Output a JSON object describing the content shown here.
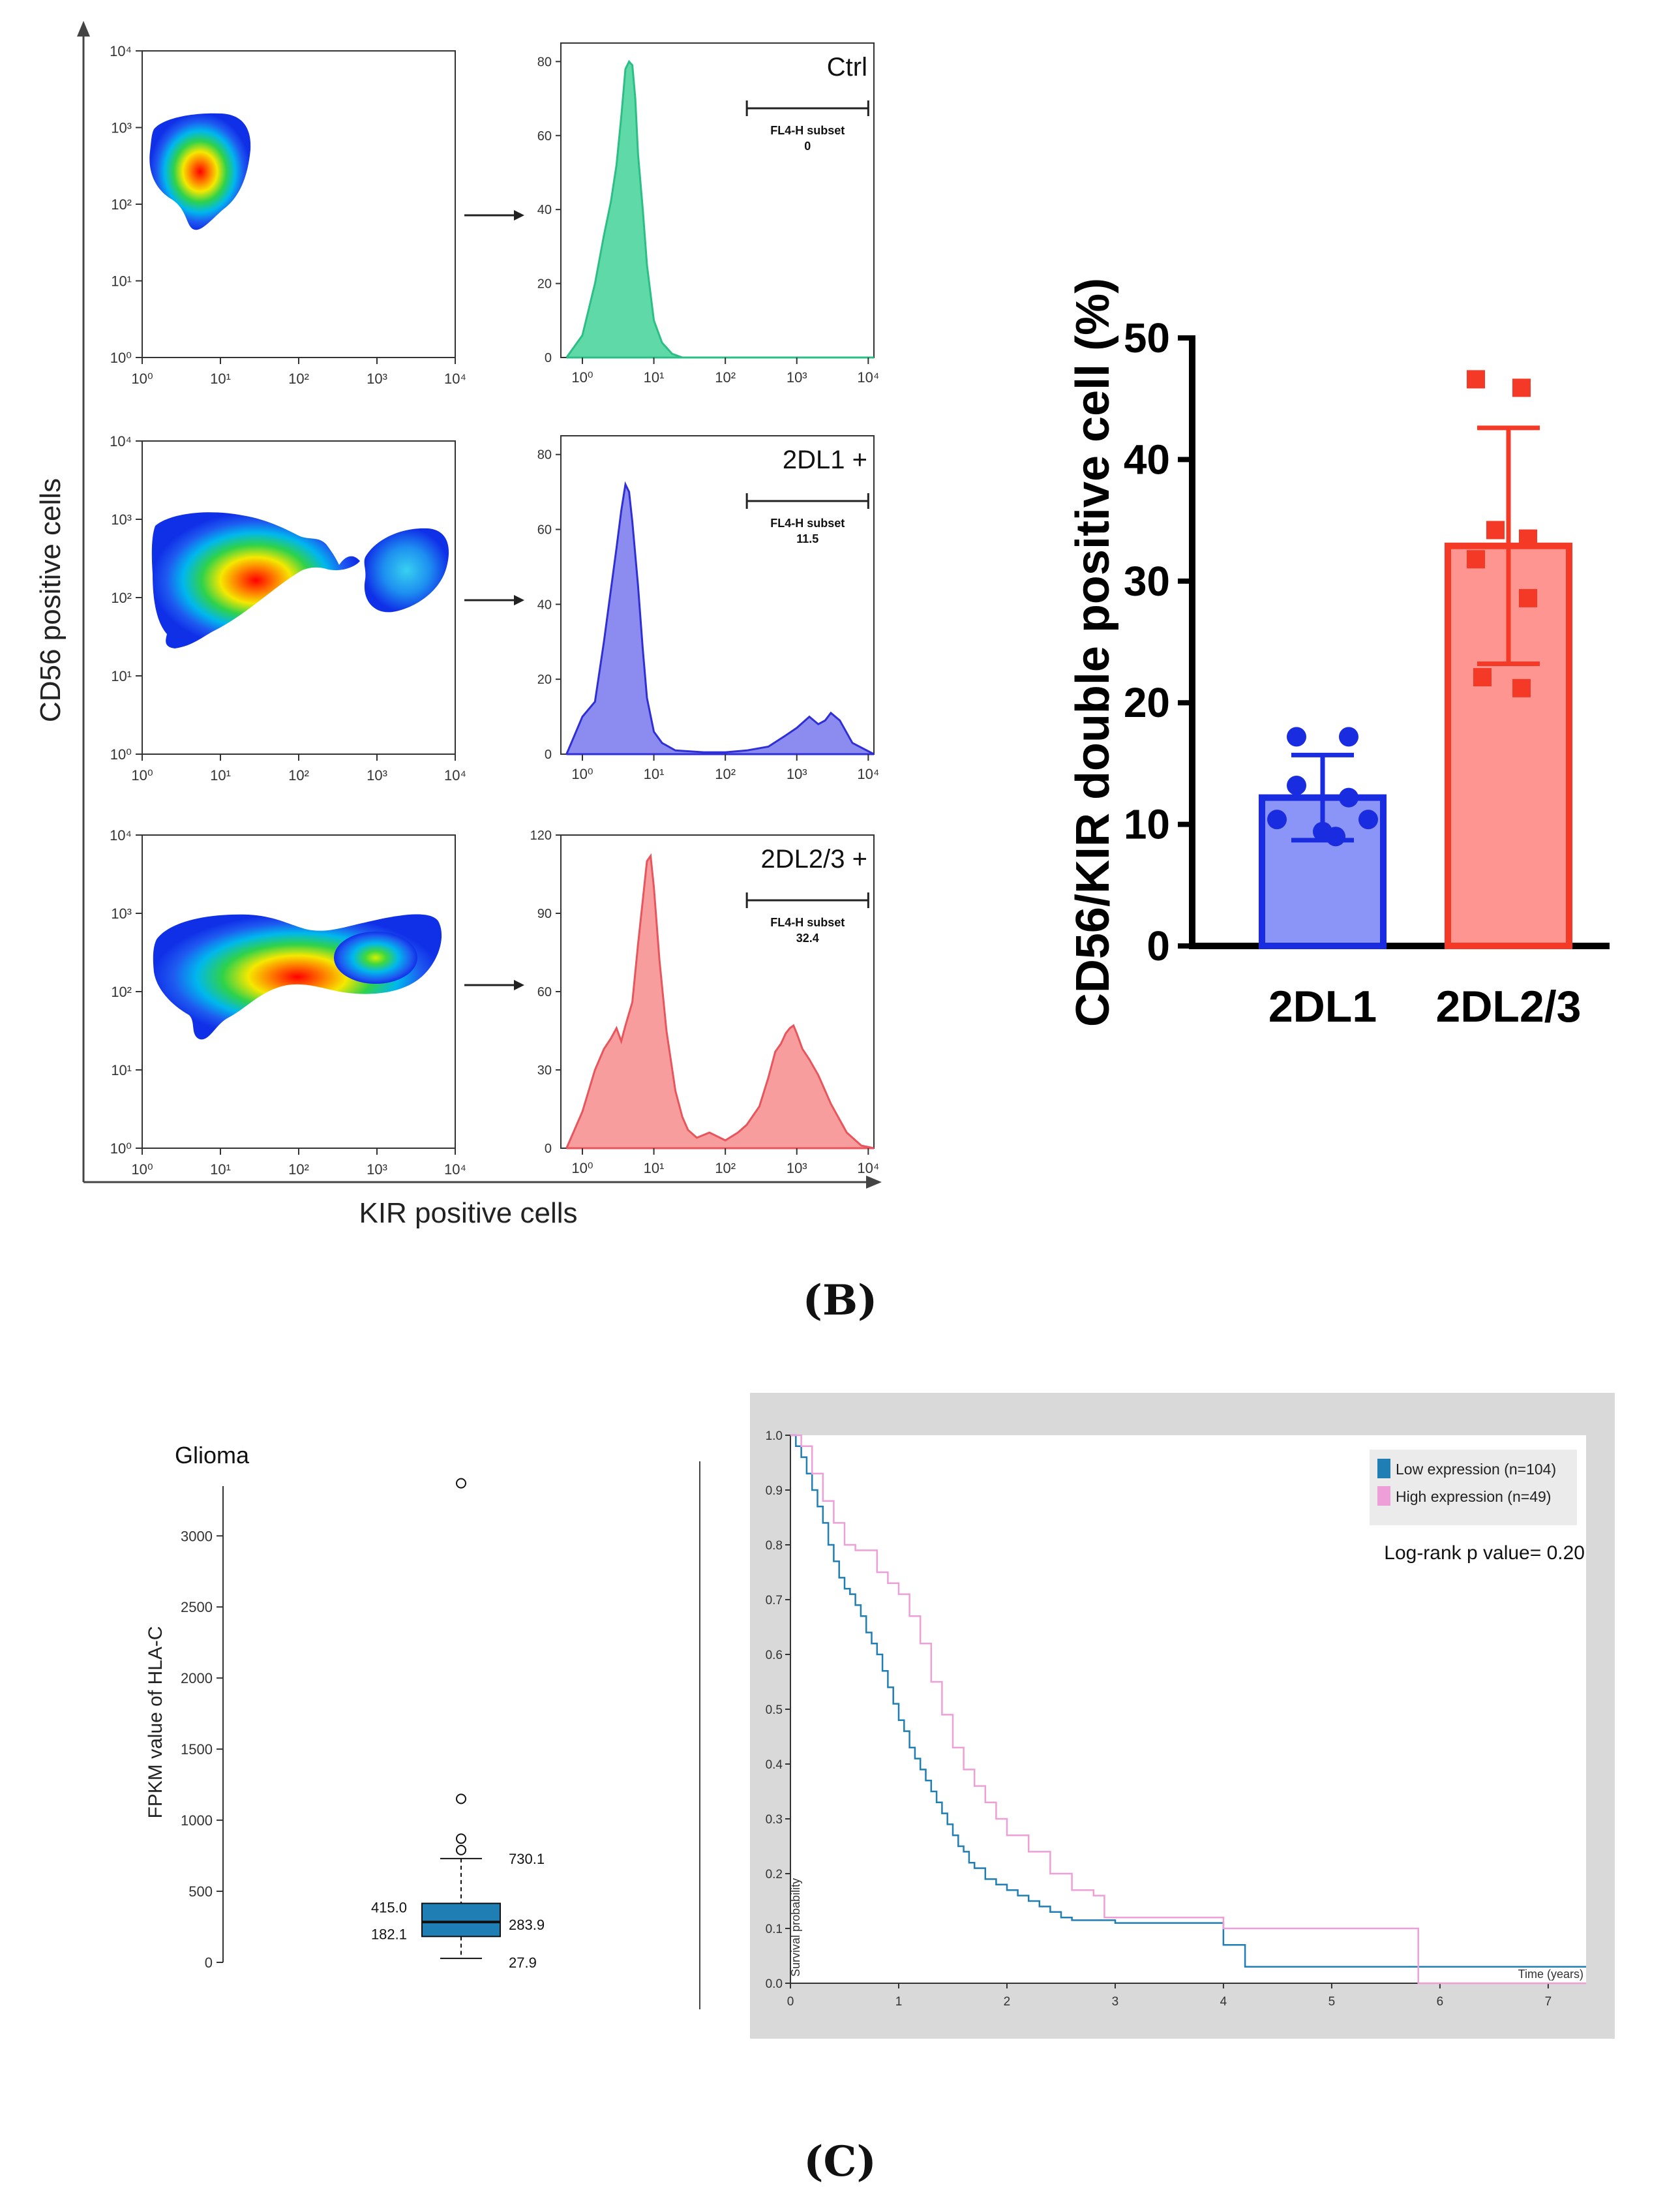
{
  "panel_labels": {
    "b": "(B)",
    "c": "(C)"
  },
  "flow": {
    "y_axis_label": "CD56 positive cells",
    "x_axis_label": "KIR positive cells",
    "log_ticks": [
      "10⁰",
      "10¹",
      "10²",
      "10³",
      "10⁴"
    ],
    "gate_label": "FL4-H subset",
    "rows": [
      {
        "id": "ctrl",
        "label": "Ctrl",
        "gate_value": "0",
        "color": "#5fd9a8",
        "stroke": "#2bbf86",
        "y_ticks": [
          "20",
          "40",
          "60",
          "80"
        ]
      },
      {
        "id": "2dl1",
        "label": "2DL1 +",
        "gate_value": "11.5",
        "color": "#8c8cf0",
        "stroke": "#2f2fd6",
        "y_ticks": [
          "20",
          "40",
          "60",
          "80"
        ]
      },
      {
        "id": "2dl23",
        "label": "2DL2/3 +",
        "gate_value": "32.4",
        "color": "#f79d9d",
        "stroke": "#e8555c",
        "y_ticks": [
          "30",
          "60",
          "90",
          "120"
        ]
      }
    ]
  },
  "chart_data": [
    {
      "type": "scatter",
      "id": "flow-hist",
      "title": "",
      "xlabel": "KIR positive cells",
      "ylabel": "",
      "x_scale": "log",
      "xlim": [
        0.5,
        12000
      ],
      "series": [
        {
          "name": "Ctrl",
          "ylim": [
            0,
            85
          ],
          "x": [
            0.6,
            1,
            1.5,
            2,
            2.5,
            3,
            3.5,
            4,
            4.5,
            5,
            5.5,
            6,
            7,
            8,
            10,
            13,
            18,
            25,
            40,
            12000
          ],
          "y": [
            0,
            6,
            20,
            33,
            42,
            52,
            65,
            78,
            80,
            79,
            70,
            55,
            40,
            25,
            10,
            4,
            1,
            0,
            0,
            0
          ]
        },
        {
          "name": "2DL1 +",
          "ylim": [
            0,
            85
          ],
          "x": [
            0.6,
            1,
            1.5,
            2,
            3,
            3.5,
            4,
            4.5,
            5,
            6,
            7,
            8,
            10,
            13,
            20,
            50,
            100,
            200,
            400,
            700,
            1000,
            1500,
            2000,
            2500,
            3000,
            4000,
            6000,
            12000
          ],
          "y": [
            0,
            10,
            14,
            30,
            55,
            65,
            72,
            70,
            62,
            45,
            28,
            15,
            6,
            3,
            1,
            0.5,
            0.5,
            1,
            2,
            5,
            7,
            10,
            8,
            9,
            11,
            9,
            3,
            0
          ]
        },
        {
          "name": "2DL2/3 +",
          "ylim": [
            0,
            120
          ],
          "x": [
            0.6,
            1,
            1.5,
            2,
            2.5,
            3,
            3.5,
            4,
            5,
            6,
            7,
            8,
            9,
            10,
            12,
            15,
            20,
            25,
            30,
            40,
            60,
            100,
            150,
            200,
            300,
            400,
            500,
            600,
            700,
            800,
            900,
            1000,
            1200,
            1500,
            2000,
            3000,
            5000,
            8000,
            12000
          ],
          "y": [
            0,
            14,
            30,
            38,
            42,
            46,
            41,
            47,
            56,
            78,
            95,
            110,
            112,
            100,
            72,
            45,
            22,
            12,
            7,
            4,
            6,
            3,
            6,
            9,
            16,
            27,
            37,
            40,
            44,
            46,
            47,
            44,
            38,
            34,
            28,
            17,
            6,
            1,
            0
          ]
        }
      ],
      "gate": {
        "from": 200,
        "to": 10000
      }
    },
    {
      "type": "bar",
      "id": "cd56-kir-bar",
      "title": "",
      "xlabel": "",
      "ylabel": "CD56/KIR double positive cell (%)",
      "ylim": [
        0,
        50
      ],
      "y_ticks": [
        "0",
        "10",
        "20",
        "30",
        "40",
        "50"
      ],
      "categories": [
        "2DL1",
        "2DL2/3"
      ],
      "values": [
        12.2,
        32.9
      ],
      "error": [
        3.5,
        9.7
      ],
      "colors": [
        "#8b95f7",
        "#ff9590"
      ],
      "edge_colors": [
        "#1a2ce0",
        "#f43a26"
      ],
      "points": [
        [
          17.2,
          17.2,
          13.2,
          12.2,
          10.4,
          10.4,
          9.4,
          9.0
        ],
        [
          46.6,
          45.9,
          34.2,
          33.5,
          31.8,
          28.6,
          22.1,
          21.2
        ]
      ]
    },
    {
      "type": "box",
      "id": "hla-c-box",
      "title": "Glioma",
      "xlabel": "",
      "ylabel": "FPKM value of HLA-C",
      "ylim": [
        0,
        3350
      ],
      "y_ticks": [
        "0",
        "500",
        "1000",
        "1500",
        "2000",
        "2500",
        "3000"
      ],
      "box": {
        "min": 27.9,
        "q1": 182.1,
        "median": 283.9,
        "q3": 415.0,
        "max": 730.1,
        "outliers": [
          3370,
          1150,
          870,
          790
        ]
      },
      "labels": {
        "q3": "415.0",
        "q1": "182.1",
        "median": "283.9",
        "max": "730.1",
        "min": "27.9"
      },
      "color": "#1f7fb5"
    },
    {
      "type": "line",
      "id": "km-survival",
      "title": "",
      "xlabel": "Time (years)",
      "ylabel": "Survival probability",
      "xlim": [
        0,
        7.35
      ],
      "ylim": [
        0,
        1.0
      ],
      "x_ticks": [
        "0",
        "1",
        "2",
        "3",
        "4",
        "5",
        "6",
        "7"
      ],
      "y_ticks": [
        "0.0",
        "0.1",
        "0.2",
        "0.3",
        "0.4",
        "0.5",
        "0.6",
        "0.7",
        "0.8",
        "0.9",
        "1.0"
      ],
      "annotation": "Log-rank p value= 0.20",
      "series": [
        {
          "name": "Low expression (n=104)",
          "color": "#1f7fb5",
          "x": [
            0,
            0.05,
            0.1,
            0.15,
            0.2,
            0.25,
            0.3,
            0.35,
            0.4,
            0.45,
            0.5,
            0.55,
            0.6,
            0.65,
            0.7,
            0.75,
            0.8,
            0.85,
            0.9,
            0.95,
            1.0,
            1.05,
            1.1,
            1.15,
            1.2,
            1.25,
            1.3,
            1.35,
            1.4,
            1.45,
            1.5,
            1.55,
            1.6,
            1.65,
            1.7,
            1.8,
            1.9,
            2.0,
            2.1,
            2.2,
            2.3,
            2.4,
            2.5,
            2.6,
            2.7,
            2.8,
            3.0,
            3.4,
            3.9,
            4.0,
            4.2,
            7.35
          ],
          "y": [
            1.0,
            0.98,
            0.96,
            0.93,
            0.9,
            0.87,
            0.84,
            0.8,
            0.77,
            0.74,
            0.72,
            0.71,
            0.69,
            0.67,
            0.64,
            0.62,
            0.6,
            0.57,
            0.54,
            0.51,
            0.48,
            0.46,
            0.43,
            0.41,
            0.39,
            0.37,
            0.35,
            0.33,
            0.31,
            0.29,
            0.27,
            0.25,
            0.24,
            0.22,
            0.21,
            0.19,
            0.18,
            0.17,
            0.16,
            0.15,
            0.14,
            0.13,
            0.12,
            0.115,
            0.115,
            0.115,
            0.11,
            0.11,
            0.11,
            0.07,
            0.03,
            0.03
          ]
        },
        {
          "name": "High expression (n=49)",
          "color": "#ee9fd8",
          "x": [
            0,
            0.1,
            0.2,
            0.3,
            0.4,
            0.5,
            0.6,
            0.7,
            0.8,
            0.9,
            1.0,
            1.1,
            1.2,
            1.3,
            1.4,
            1.5,
            1.6,
            1.7,
            1.8,
            1.9,
            2.0,
            2.2,
            2.4,
            2.6,
            2.8,
            2.9,
            3.0,
            3.5,
            3.9,
            4.0,
            5.8,
            5.8,
            7.35
          ],
          "y": [
            1.0,
            0.98,
            0.93,
            0.88,
            0.84,
            0.8,
            0.79,
            0.79,
            0.75,
            0.73,
            0.71,
            0.67,
            0.62,
            0.55,
            0.49,
            0.43,
            0.39,
            0.36,
            0.33,
            0.3,
            0.27,
            0.24,
            0.2,
            0.17,
            0.16,
            0.12,
            0.12,
            0.12,
            0.12,
            0.1,
            0.03,
            0.0,
            0.0
          ]
        }
      ]
    }
  ]
}
